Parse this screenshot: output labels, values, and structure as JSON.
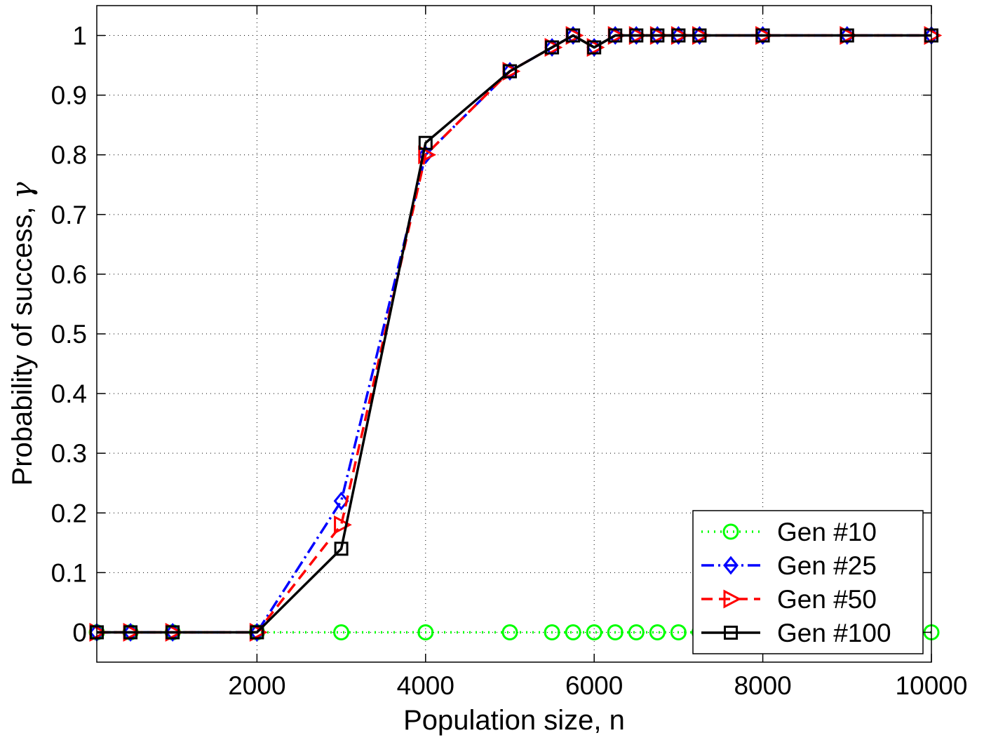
{
  "chart_data": {
    "type": "line",
    "title": "",
    "xlabel": "Population size, n",
    "ylabel_text": "Probability of success, ",
    "ylabel_symbol": "γ",
    "xlim": [
      100,
      10000
    ],
    "ylim": [
      -0.05,
      1.05
    ],
    "xticks": [
      2000,
      4000,
      6000,
      8000,
      10000
    ],
    "xtick_labels": [
      "2000",
      "4000",
      "6000",
      "8000",
      "10000"
    ],
    "yticks": [
      0,
      0.1,
      0.2,
      0.3,
      0.4,
      0.5,
      0.6,
      0.7,
      0.8,
      0.9,
      1
    ],
    "ytick_labels": [
      "0",
      "0.1",
      "0.2",
      "0.3",
      "0.4",
      "0.5",
      "0.6",
      "0.7",
      "0.8",
      "0.9",
      "1"
    ],
    "grid": true,
    "legend_position": "bottom-right",
    "x": [
      100,
      500,
      1000,
      2000,
      3000,
      4000,
      5000,
      5500,
      5750,
      6000,
      6250,
      6500,
      6750,
      7000,
      7250,
      8000,
      9000,
      10000
    ],
    "series": [
      {
        "name": "Gen #10",
        "color": "#00ff00",
        "marker": "circle",
        "dash": "2,7",
        "values": [
          0,
          0,
          0,
          0,
          0,
          0,
          0,
          0,
          0,
          0,
          0,
          0,
          0,
          0,
          0,
          0,
          0,
          0
        ]
      },
      {
        "name": "Gen #25",
        "color": "#0000ff",
        "marker": "diamond",
        "dash": "18,6,3,6",
        "values": [
          0,
          0,
          0,
          0,
          0.22,
          0.8,
          0.94,
          0.98,
          1,
          0.98,
          1,
          1,
          1,
          1,
          1,
          1,
          1,
          1
        ]
      },
      {
        "name": "Gen #50",
        "color": "#ff0000",
        "marker": "triangle-right",
        "dash": "16,9",
        "values": [
          0,
          0,
          0,
          0,
          0.18,
          0.8,
          0.94,
          0.98,
          1,
          0.98,
          1,
          1,
          1,
          1,
          1,
          1,
          1,
          1
        ]
      },
      {
        "name": "Gen #100",
        "color": "#000000",
        "marker": "square",
        "dash": "",
        "values": [
          0,
          0,
          0,
          0,
          0.14,
          0.82,
          0.94,
          0.98,
          1,
          0.98,
          1,
          1,
          1,
          1,
          1,
          1,
          1,
          1
        ]
      }
    ]
  }
}
